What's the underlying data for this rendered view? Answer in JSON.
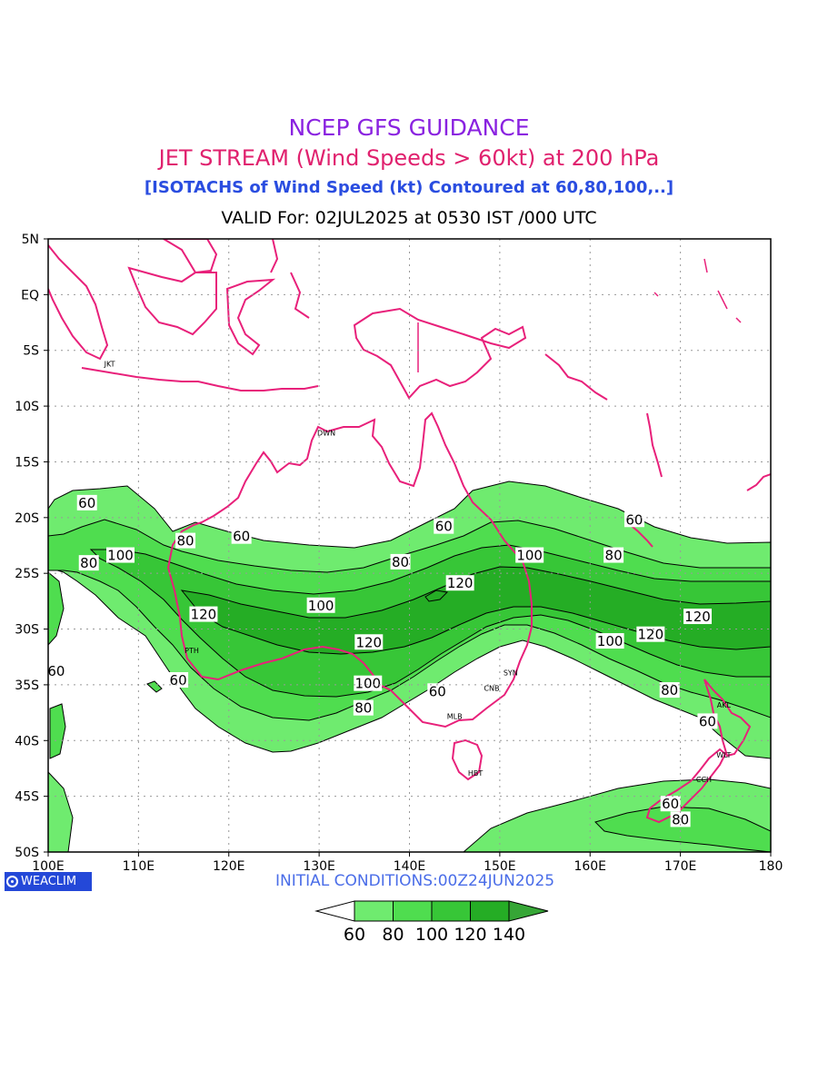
{
  "header": {
    "title": "NCEP GFS GUIDANCE",
    "subtitle": "JET STREAM (Wind Speeds > 60kt) at 200 hPa",
    "description": "[ISOTACHS of Wind Speed (kt) Contoured at 60,80,100,..]",
    "valid": "VALID For: 02JUL2025 at 0530 IST /000 UTC"
  },
  "map": {
    "region": "Australia / Maritime Continent",
    "lon_range": [
      100,
      180
    ],
    "lat_range": [
      -50,
      5
    ],
    "lon_ticks": [
      "100E",
      "110E",
      "120E",
      "130E",
      "140E",
      "150E",
      "160E",
      "170E",
      "180"
    ],
    "lat_ticks": [
      "5N",
      "EQ",
      "5S",
      "10S",
      "15S",
      "20S",
      "25S",
      "30S",
      "35S",
      "40S",
      "45S",
      "50S"
    ],
    "grid": "dotted",
    "coastline_color": "#e8207a",
    "cities": [
      {
        "code": "JKT",
        "lon": 106.8,
        "lat": -6.2
      },
      {
        "code": "DWN",
        "lon": 130.8,
        "lat": -12.4
      },
      {
        "code": "PTH",
        "lon": 115.9,
        "lat": -31.9
      },
      {
        "code": "SYN",
        "lon": 151.2,
        "lat": -33.9
      },
      {
        "code": "CNB",
        "lon": 149.1,
        "lat": -35.3
      },
      {
        "code": "MLB",
        "lon": 145.0,
        "lat": -37.8
      },
      {
        "code": "HBT",
        "lon": 147.3,
        "lat": -42.9
      },
      {
        "code": "AKL",
        "lon": 174.8,
        "lat": -36.8
      },
      {
        "code": "WLT",
        "lon": 174.8,
        "lat": -41.3
      },
      {
        "code": "CCH",
        "lon": 172.6,
        "lat": -43.5
      }
    ],
    "contour_labels": [
      {
        "text": "60",
        "lon": 104.3,
        "lat": -18.7
      },
      {
        "text": "80",
        "lon": 115.2,
        "lat": -22.1
      },
      {
        "text": "60",
        "lon": 121.4,
        "lat": -21.7
      },
      {
        "text": "100",
        "lon": 108.0,
        "lat": -23.4
      },
      {
        "text": "80",
        "lon": 104.5,
        "lat": -24.1
      },
      {
        "text": "80",
        "lon": 139.0,
        "lat": -24.0
      },
      {
        "text": "60",
        "lon": 143.8,
        "lat": -20.8
      },
      {
        "text": "100",
        "lon": 153.3,
        "lat": -23.4
      },
      {
        "text": "80",
        "lon": 162.6,
        "lat": -23.4
      },
      {
        "text": "60",
        "lon": 164.9,
        "lat": -20.2
      },
      {
        "text": "120",
        "lon": 145.6,
        "lat": -25.9
      },
      {
        "text": "100",
        "lon": 130.2,
        "lat": -27.9
      },
      {
        "text": "120",
        "lon": 117.2,
        "lat": -28.7
      },
      {
        "text": "120",
        "lon": 171.9,
        "lat": -28.9
      },
      {
        "text": "120",
        "lon": 166.7,
        "lat": -30.5
      },
      {
        "text": "100",
        "lon": 162.2,
        "lat": -31.1
      },
      {
        "text": "120",
        "lon": 135.5,
        "lat": -31.2
      },
      {
        "text": "60",
        "lon": 100.9,
        "lat": -33.8
      },
      {
        "text": "60",
        "lon": 114.4,
        "lat": -34.6
      },
      {
        "text": "100",
        "lon": 135.4,
        "lat": -34.9
      },
      {
        "text": "60",
        "lon": 143.1,
        "lat": -35.6
      },
      {
        "text": "80",
        "lon": 134.9,
        "lat": -37.1
      },
      {
        "text": "80",
        "lon": 168.8,
        "lat": -35.5
      },
      {
        "text": "60",
        "lon": 173.0,
        "lat": -38.3
      },
      {
        "text": "60",
        "lon": 168.9,
        "lat": -45.7
      },
      {
        "text": "80",
        "lon": 170.0,
        "lat": -47.1
      }
    ]
  },
  "legend": {
    "bins": [
      "60",
      "80",
      "100",
      "120",
      "140"
    ],
    "colors": [
      "#ffffff",
      "#6feb6f",
      "#4fdd4f",
      "#37c637",
      "#25ad25",
      "#36a636"
    ],
    "units": "kt"
  },
  "footer": {
    "logo": "WEACLIM",
    "initial_conditions": "INITIAL  CONDITIONS:00Z24JUN2025"
  }
}
